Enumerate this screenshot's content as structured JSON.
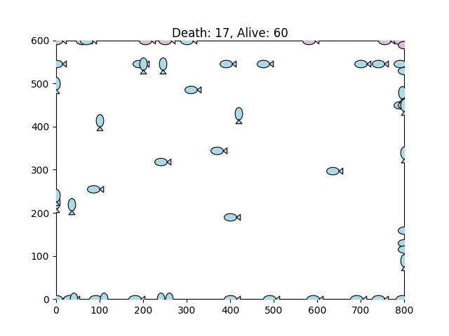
{
  "chart_data": {
    "type": "scatter",
    "title": "Death: 17, Alive: 60",
    "xlim": [
      0,
      800
    ],
    "ylim": [
      0,
      600
    ],
    "xticks": [
      0,
      100,
      200,
      300,
      400,
      500,
      600,
      700,
      800
    ],
    "yticks": [
      0,
      100,
      200,
      300,
      400,
      500,
      600
    ],
    "series": [
      {
        "color": "#d8bfd8",
        "marker": "fish_left",
        "x": [
          0,
          205,
          250,
          580,
          755,
          790,
          800,
          60
        ],
        "y": [
          600,
          600,
          600,
          600,
          600,
          600,
          590,
          600
        ]
      },
      {
        "color": "#add8e6",
        "marker": "fish_left",
        "x": [
          70,
          300,
          0,
          190,
          390,
          475,
          700,
          740,
          790,
          800,
          310,
          790,
          800,
          370,
          240,
          85,
          400,
          635,
          800,
          800,
          800,
          0,
          30,
          90,
          180,
          400,
          490,
          590,
          690,
          740,
          795
        ],
        "y": [
          600,
          600,
          545,
          545,
          545,
          545,
          545,
          545,
          545,
          530,
          485,
          450,
          450,
          345,
          318,
          255,
          190,
          298,
          160,
          130,
          115,
          0,
          0,
          0,
          0,
          0,
          0,
          0,
          0,
          0,
          0
        ]
      },
      {
        "color": "#add8e6",
        "marker": "fish_up",
        "x": [
          0,
          100,
          420,
          800,
          800,
          0,
          35,
          0,
          200,
          245,
          795,
          240,
          260,
          110,
          40,
          800
        ],
        "y": [
          500,
          415,
          430,
          340,
          90,
          225,
          220,
          240,
          545,
          545,
          480,
          0,
          0,
          0,
          0,
          450
        ]
      }
    ]
  }
}
